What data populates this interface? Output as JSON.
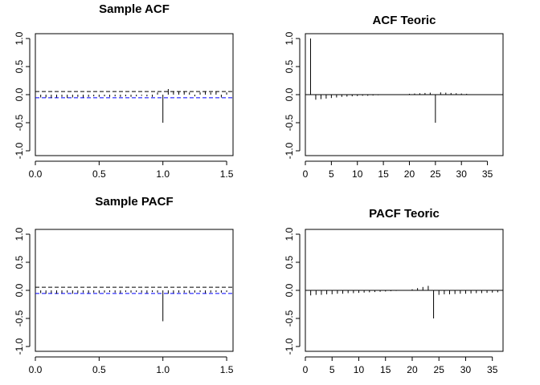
{
  "colors": {
    "ink": "#000000",
    "conf_low": "#0000ff",
    "conf_high": "#000000"
  },
  "chart_data": [
    {
      "type": "bar",
      "title": "Sample ACF",
      "xlim": [
        0,
        1.55
      ],
      "ylim": [
        -1,
        1
      ],
      "xticks": [
        0,
        0.5,
        1,
        1.5
      ],
      "xtick_labels": [
        "0.0",
        "0.5",
        "1.0",
        "1.5"
      ],
      "yticks": [
        -1,
        -0.5,
        0,
        0.5,
        1
      ],
      "ytick_labels": [
        "-1.0",
        "-0.5",
        "0.0",
        "0.5",
        "1.0"
      ],
      "conf_bounds": [
        0.055,
        -0.055
      ],
      "zero_line": false,
      "x": [
        0,
        0.042,
        0.083,
        0.125,
        0.167,
        0.208,
        0.25,
        0.292,
        0.333,
        0.375,
        0.417,
        0.458,
        0.5,
        0.542,
        0.583,
        0.625,
        0.667,
        0.708,
        0.75,
        0.792,
        0.833,
        0.875,
        0.917,
        0.958,
        1.0,
        1.042,
        1.083,
        1.125,
        1.167,
        1.208,
        1.25,
        1.292,
        1.333,
        1.375,
        1.417,
        1.458,
        1.5
      ],
      "values": [
        1.0,
        -0.05,
        -0.05,
        -0.06,
        -0.05,
        -0.04,
        -0.06,
        -0.05,
        -0.04,
        -0.05,
        -0.04,
        -0.03,
        -0.04,
        -0.03,
        -0.04,
        -0.03,
        -0.04,
        -0.03,
        -0.04,
        -0.03,
        -0.02,
        -0.03,
        -0.04,
        0.04,
        -0.5,
        0.1,
        0.06,
        0.05,
        0.05,
        0.04,
        -0.03,
        0.04,
        0.06,
        0.04,
        0.05,
        -0.05,
        0.04
      ]
    },
    {
      "type": "bar",
      "title": "ACF Teoric",
      "xlim": [
        0,
        38
      ],
      "ylim": [
        -1,
        1
      ],
      "xticks": [
        0,
        5,
        10,
        15,
        20,
        25,
        30,
        35
      ],
      "xtick_labels": [
        "0",
        "5",
        "10",
        "15",
        "20",
        "25",
        "30",
        "35"
      ],
      "yticks": [
        -1,
        -0.5,
        0,
        0.5,
        1
      ],
      "ytick_labels": [
        "-1.0",
        "-0.5",
        "0.0",
        "0.5",
        "1.0"
      ],
      "zero_line": true,
      "x": [
        1,
        2,
        3,
        4,
        5,
        6,
        7,
        8,
        9,
        10,
        11,
        12,
        13,
        14,
        20,
        21,
        22,
        23,
        24,
        25,
        26,
        27,
        28,
        29,
        30,
        31
      ],
      "values": [
        1.0,
        -0.09,
        -0.08,
        -0.07,
        -0.06,
        -0.05,
        -0.04,
        -0.035,
        -0.03,
        -0.025,
        -0.02,
        -0.02,
        -0.015,
        -0.01,
        0.015,
        0.02,
        0.025,
        0.03,
        0.035,
        -0.5,
        0.04,
        0.035,
        0.03,
        0.025,
        0.02,
        0.015
      ]
    },
    {
      "type": "bar",
      "title": "Sample PACF",
      "xlim": [
        0,
        1.55
      ],
      "ylim": [
        -1,
        1
      ],
      "xticks": [
        0,
        0.5,
        1,
        1.5
      ],
      "xtick_labels": [
        "0.0",
        "0.5",
        "1.0",
        "1.5"
      ],
      "yticks": [
        -1,
        -0.5,
        0,
        0.5,
        1
      ],
      "ytick_labels": [
        "-1.0",
        "-0.5",
        "0.0",
        "0.5",
        "1.0"
      ],
      "conf_bounds": [
        0.055,
        -0.055
      ],
      "zero_line": false,
      "x": [
        0.042,
        0.083,
        0.125,
        0.167,
        0.208,
        0.25,
        0.292,
        0.333,
        0.375,
        0.417,
        0.458,
        0.5,
        0.542,
        0.583,
        0.625,
        0.667,
        0.708,
        0.75,
        0.792,
        0.833,
        0.875,
        0.917,
        0.958,
        1.0,
        1.042,
        1.083,
        1.125,
        1.167,
        1.208,
        1.25,
        1.292,
        1.333,
        1.375,
        1.417,
        1.458,
        1.5
      ],
      "values": [
        -0.05,
        -0.06,
        -0.05,
        -0.06,
        -0.05,
        -0.04,
        -0.06,
        -0.05,
        -0.04,
        -0.05,
        -0.04,
        -0.05,
        -0.04,
        -0.03,
        -0.04,
        -0.05,
        -0.03,
        -0.04,
        -0.03,
        -0.04,
        -0.05,
        -0.03,
        -0.04,
        -0.55,
        -0.06,
        -0.05,
        -0.04,
        -0.04,
        -0.05,
        -0.04,
        -0.03,
        -0.05,
        -0.04,
        -0.03,
        -0.04,
        -0.03
      ]
    },
    {
      "type": "bar",
      "title": "PACF Teoric",
      "xlim": [
        0,
        37
      ],
      "ylim": [
        -1,
        1
      ],
      "xticks": [
        0,
        5,
        10,
        15,
        20,
        25,
        30,
        35
      ],
      "xtick_labels": [
        "0",
        "5",
        "10",
        "15",
        "20",
        "25",
        "30",
        "35"
      ],
      "yticks": [
        -1,
        -0.5,
        0,
        0.5,
        1
      ],
      "ytick_labels": [
        "-1.0",
        "-0.5",
        "0.0",
        "0.5",
        "1.0"
      ],
      "zero_line": true,
      "x": [
        1,
        2,
        3,
        4,
        5,
        6,
        7,
        8,
        9,
        10,
        11,
        12,
        13,
        14,
        15,
        16,
        17,
        20,
        21,
        22,
        23,
        24,
        25,
        26,
        27,
        28,
        29,
        30,
        31,
        32,
        33,
        34,
        35,
        36
      ],
      "values": [
        -0.09,
        -0.08,
        -0.08,
        -0.07,
        -0.07,
        -0.06,
        -0.06,
        -0.05,
        -0.05,
        -0.045,
        -0.04,
        -0.035,
        -0.03,
        -0.025,
        -0.02,
        -0.015,
        -0.01,
        0.02,
        0.04,
        0.06,
        0.08,
        -0.5,
        -0.08,
        -0.07,
        -0.07,
        -0.065,
        -0.06,
        -0.06,
        -0.055,
        -0.05,
        -0.05,
        -0.045,
        -0.04,
        -0.035
      ]
    }
  ]
}
